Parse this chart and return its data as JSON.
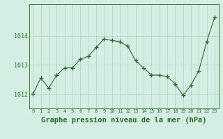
{
  "x": [
    0,
    1,
    2,
    3,
    4,
    5,
    6,
    7,
    8,
    9,
    10,
    11,
    12,
    13,
    14,
    15,
    16,
    17,
    18,
    19,
    20,
    21,
    22,
    23
  ],
  "y": [
    1012.0,
    1012.55,
    1012.2,
    1012.65,
    1012.9,
    1012.9,
    1013.2,
    1013.3,
    1013.6,
    1013.9,
    1013.85,
    1013.8,
    1013.65,
    1013.15,
    1012.9,
    1012.65,
    1012.65,
    1012.6,
    1012.35,
    1011.95,
    1012.3,
    1012.8,
    1013.8,
    1014.65
  ],
  "line_color": "#2d6a2d",
  "marker_color": "#2d6a2d",
  "bg_color": "#d4eee4",
  "plot_bg_color": "#d4eee4",
  "grid_color": "#b0d0c0",
  "title": "Graphe pression niveau de la mer (hPa)",
  "ylim_min": 1011.5,
  "ylim_max": 1015.1,
  "yticks": [
    1012,
    1013,
    1014
  ],
  "title_fontsize": 7.5
}
